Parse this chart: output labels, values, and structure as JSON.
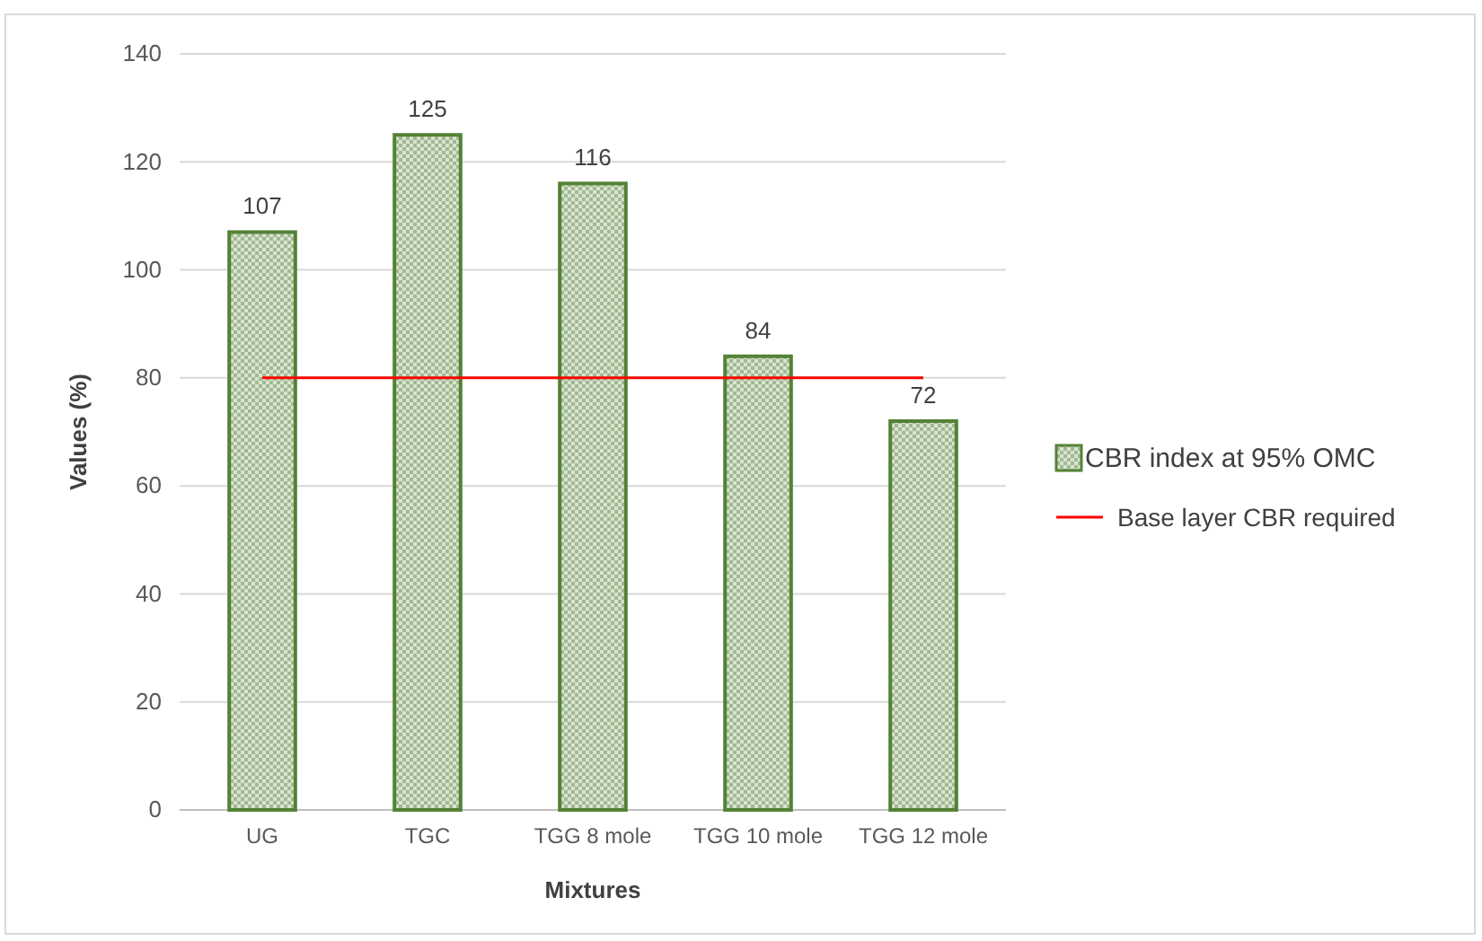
{
  "chart_data": {
    "type": "bar",
    "xlabel": "Mixtures",
    "ylabel": "Values (%)",
    "categories": [
      "UG",
      "TGC",
      "TGG 8 mole",
      "TGG 10 mole",
      "TGG 12 mole"
    ],
    "series": [
      {
        "name": "CBR index at 95% OMC",
        "color": "#548235",
        "values": [
          107,
          125,
          116,
          84,
          72
        ],
        "value_labels": [
          "107",
          "125",
          "116",
          "84",
          "72"
        ]
      },
      {
        "name": "Base layer CBR required",
        "type": "line",
        "color": "#ff0000",
        "values": [
          80,
          80,
          80,
          80,
          80
        ]
      }
    ],
    "ylim": [
      0,
      140
    ],
    "yticks": [
      0,
      20,
      40,
      60,
      80,
      100,
      120,
      140
    ],
    "grid": "y",
    "legend": "right"
  }
}
